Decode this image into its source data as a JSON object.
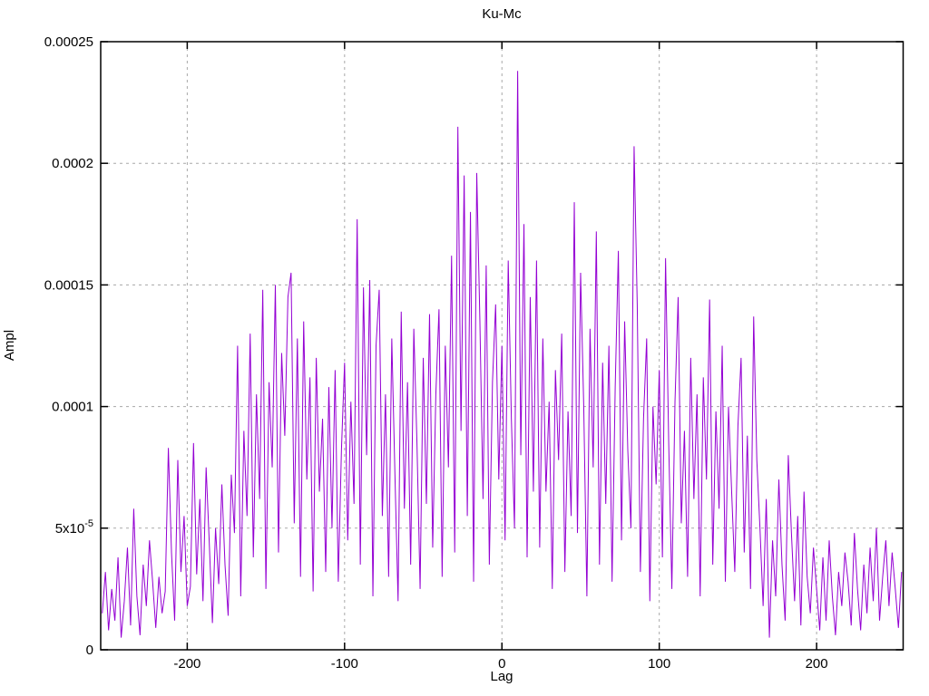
{
  "chart_data": {
    "type": "line",
    "title": "Ku-Mc",
    "xlabel": "Lag",
    "ylabel": "Ampl",
    "xlim": [
      -255,
      255
    ],
    "ylim": [
      0,
      0.00025
    ],
    "grid": true,
    "legend": "none",
    "line_color": "#9400d3",
    "grid_color": "#a8a8a8",
    "border_color": "#000000",
    "x_ticks": [
      {
        "value": -200,
        "label": "-200"
      },
      {
        "value": -100,
        "label": "-100"
      },
      {
        "value": 0,
        "label": "0"
      },
      {
        "value": 100,
        "label": "100"
      },
      {
        "value": 200,
        "label": "200"
      }
    ],
    "y_ticks": [
      {
        "value": 0,
        "label": "0"
      },
      {
        "value": 5e-05,
        "label": "5x10",
        "sup": "-5"
      },
      {
        "value": 0.0001,
        "label": "0.0001"
      },
      {
        "value": 0.00015,
        "label": "0.00015"
      },
      {
        "value": 0.0002,
        "label": "0.0002"
      },
      {
        "value": 0.00025,
        "label": "0.00025"
      }
    ],
    "series": [
      {
        "name": "Ku-Mc",
        "x_start": -254,
        "x_step": 2,
        "y_scale": 1e-05,
        "y": [
          1.5,
          3.2,
          0.8,
          2.5,
          1.2,
          3.8,
          0.5,
          2.0,
          4.2,
          1.0,
          5.8,
          2.2,
          0.6,
          3.5,
          1.8,
          4.5,
          2.8,
          0.9,
          3.0,
          1.5,
          2.4,
          8.3,
          4.0,
          1.2,
          7.8,
          3.2,
          5.5,
          1.8,
          2.6,
          8.5,
          3.1,
          6.2,
          2.0,
          7.5,
          4.4,
          1.1,
          5.0,
          2.7,
          6.8,
          3.5,
          1.4,
          7.2,
          4.8,
          12.5,
          2.2,
          9.0,
          5.5,
          13.0,
          3.8,
          10.5,
          6.2,
          14.8,
          2.5,
          11.0,
          7.5,
          15.0,
          4.0,
          12.2,
          8.8,
          14.5,
          15.5,
          5.2,
          12.8,
          3.0,
          13.5,
          7.0,
          11.2,
          2.4,
          12.0,
          6.5,
          9.5,
          3.2,
          10.8,
          5.0,
          11.5,
          2.8,
          8.2,
          11.8,
          4.5,
          10.2,
          6.0,
          17.7,
          3.5,
          14.9,
          8.0,
          15.2,
          2.2,
          12.5,
          14.8,
          5.5,
          10.5,
          3.0,
          12.8,
          7.2,
          2.0,
          13.9,
          5.8,
          11.0,
          3.5,
          13.2,
          8.5,
          2.5,
          12.0,
          6.0,
          13.8,
          4.2,
          10.5,
          14.0,
          3.0,
          12.5,
          7.5,
          16.2,
          4.0,
          21.5,
          9.0,
          19.5,
          5.5,
          18.0,
          2.8,
          19.6,
          13.5,
          6.2,
          15.8,
          3.5,
          11.0,
          14.2,
          7.0,
          12.5,
          4.5,
          16.0,
          9.5,
          5.0,
          23.8,
          8.0,
          17.5,
          3.8,
          14.5,
          6.5,
          16.0,
          4.2,
          12.8,
          6.5,
          10.2,
          2.5,
          11.5,
          7.8,
          13.0,
          3.2,
          9.8,
          5.5,
          18.4,
          4.8,
          15.5,
          10.0,
          2.2,
          13.2,
          7.5,
          17.2,
          3.5,
          11.8,
          6.0,
          12.5,
          2.8,
          10.8,
          16.4,
          4.5,
          13.5,
          8.2,
          5.0,
          20.7,
          14.2,
          3.2,
          9.5,
          12.8,
          2.0,
          10.0,
          6.8,
          11.5,
          3.8,
          16.1,
          8.5,
          2.5,
          10.2,
          14.5,
          5.2,
          9.0,
          3.0,
          12.0,
          6.2,
          10.5,
          2.2,
          11.2,
          7.0,
          14.4,
          3.5,
          9.8,
          5.8,
          12.5,
          2.8,
          10.0,
          6.5,
          3.2,
          9.2,
          12.0,
          4.0,
          8.8,
          2.5,
          13.7,
          7.8,
          5.0,
          1.8,
          6.2,
          0.5,
          4.5,
          2.2,
          7.0,
          3.5,
          1.2,
          8.0,
          4.8,
          2.0,
          5.5,
          1.0,
          6.5,
          3.0,
          1.5,
          4.2,
          2.5,
          0.8,
          3.8,
          1.2,
          4.5,
          2.2,
          0.6,
          3.2,
          1.8,
          4.0,
          2.8,
          1.0,
          4.8,
          2.5,
          0.8,
          3.5,
          1.5,
          4.2,
          2.0,
          5.0,
          1.2,
          3.0,
          4.5,
          1.8,
          4.0,
          2.5,
          0.9,
          3.2
        ]
      }
    ]
  }
}
